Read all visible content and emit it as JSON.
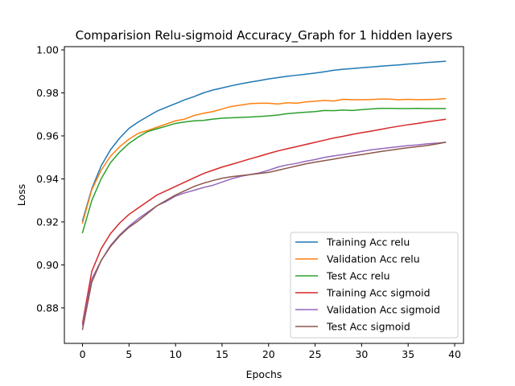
{
  "chart_data": {
    "type": "line",
    "title": "Comparision Relu-sigmoid Accuracy_Graph for 1 hidden layers",
    "xlabel": "Epochs",
    "ylabel": "Loss",
    "xlim": [
      -1.95,
      40.95
    ],
    "ylim": [
      0.8635,
      1.0015
    ],
    "xticks": [
      0,
      5,
      10,
      15,
      20,
      25,
      30,
      35,
      40
    ],
    "yticks": [
      0.88,
      0.9,
      0.92,
      0.94,
      0.96,
      0.98,
      1.0
    ],
    "ytick_labels": [
      "0.88",
      "0.90",
      "0.92",
      "0.94",
      "0.96",
      "0.98",
      "1.00"
    ],
    "grid": false,
    "legend_position": "lower-right",
    "x": [
      0,
      1,
      2,
      3,
      4,
      5,
      6,
      7,
      8,
      9,
      10,
      11,
      12,
      13,
      14,
      15,
      16,
      17,
      18,
      19,
      20,
      21,
      22,
      23,
      24,
      25,
      26,
      27,
      28,
      29,
      30,
      31,
      32,
      33,
      34,
      35,
      36,
      37,
      38,
      39
    ],
    "series": [
      {
        "name": "Training Acc relu",
        "color": "#1f77b4",
        "values": [
          0.9205,
          0.9355,
          0.946,
          0.9535,
          0.959,
          0.9635,
          0.9665,
          0.969,
          0.9715,
          0.9733,
          0.975,
          0.9768,
          0.9783,
          0.98,
          0.9813,
          0.9823,
          0.9833,
          0.9842,
          0.985,
          0.9857,
          0.9865,
          0.9871,
          0.9877,
          0.9882,
          0.9887,
          0.9892,
          0.9898,
          0.9905,
          0.991,
          0.9913,
          0.9917,
          0.992,
          0.9924,
          0.9927,
          0.993,
          0.9934,
          0.9937,
          0.9941,
          0.9944,
          0.9947
        ]
      },
      {
        "name": "Validation Acc relu",
        "color": "#ff7f0e",
        "values": [
          0.9195,
          0.935,
          0.944,
          0.9505,
          0.955,
          0.9585,
          0.9612,
          0.9625,
          0.964,
          0.9655,
          0.967,
          0.9678,
          0.9695,
          0.9705,
          0.9713,
          0.9725,
          0.9737,
          0.9743,
          0.975,
          0.9752,
          0.9752,
          0.9748,
          0.9754,
          0.9752,
          0.9758,
          0.9761,
          0.9765,
          0.9762,
          0.977,
          0.9768,
          0.9768,
          0.9769,
          0.9771,
          0.9771,
          0.9768,
          0.977,
          0.9768,
          0.9769,
          0.977,
          0.9773
        ]
      },
      {
        "name": "Test Acc relu",
        "color": "#2ca02c",
        "values": [
          0.915,
          0.93,
          0.94,
          0.9475,
          0.9525,
          0.9565,
          0.9595,
          0.962,
          0.9633,
          0.9645,
          0.9658,
          0.9665,
          0.967,
          0.9672,
          0.9678,
          0.9682,
          0.9684,
          0.9686,
          0.9688,
          0.969,
          0.9693,
          0.9697,
          0.9703,
          0.9707,
          0.971,
          0.9713,
          0.9718,
          0.9717,
          0.972,
          0.9718,
          0.9722,
          0.9725,
          0.9728,
          0.9728,
          0.9727,
          0.9727,
          0.9728,
          0.9727,
          0.9727,
          0.9727
        ]
      },
      {
        "name": "Training Acc sigmoid",
        "color": "#d62728",
        "values": [
          0.873,
          0.897,
          0.9075,
          0.9145,
          0.9195,
          0.9235,
          0.9265,
          0.9295,
          0.9325,
          0.9345,
          0.9365,
          0.9385,
          0.9405,
          0.9425,
          0.944,
          0.9455,
          0.9467,
          0.948,
          0.9493,
          0.9505,
          0.9518,
          0.953,
          0.954,
          0.955,
          0.956,
          0.957,
          0.958,
          0.959,
          0.9598,
          0.9607,
          0.9615,
          0.9622,
          0.963,
          0.9638,
          0.9645,
          0.9652,
          0.9658,
          0.9665,
          0.9671,
          0.9677
        ]
      },
      {
        "name": "Validation Acc sigmoid",
        "color": "#9467bd",
        "values": [
          0.872,
          0.8935,
          0.902,
          0.909,
          0.914,
          0.918,
          0.9215,
          0.9245,
          0.9275,
          0.9295,
          0.932,
          0.9335,
          0.9347,
          0.936,
          0.937,
          0.9385,
          0.94,
          0.9412,
          0.942,
          0.9428,
          0.944,
          0.9455,
          0.9465,
          0.9472,
          0.9482,
          0.949,
          0.95,
          0.9507,
          0.9513,
          0.952,
          0.9528,
          0.9535,
          0.954,
          0.9545,
          0.955,
          0.9555,
          0.9558,
          0.9563,
          0.9566,
          0.957
        ]
      },
      {
        "name": "Test Acc sigmoid",
        "color": "#8c564b",
        "values": [
          0.87,
          0.892,
          0.902,
          0.9085,
          0.9135,
          0.9175,
          0.9205,
          0.924,
          0.9275,
          0.93,
          0.9325,
          0.9345,
          0.9365,
          0.938,
          0.9392,
          0.9403,
          0.941,
          0.9415,
          0.942,
          0.9425,
          0.943,
          0.944,
          0.945,
          0.946,
          0.947,
          0.9478,
          0.9485,
          0.9492,
          0.95,
          0.9507,
          0.9513,
          0.952,
          0.9527,
          0.9533,
          0.9539,
          0.9545,
          0.955,
          0.9555,
          0.9562,
          0.957
        ]
      }
    ]
  }
}
